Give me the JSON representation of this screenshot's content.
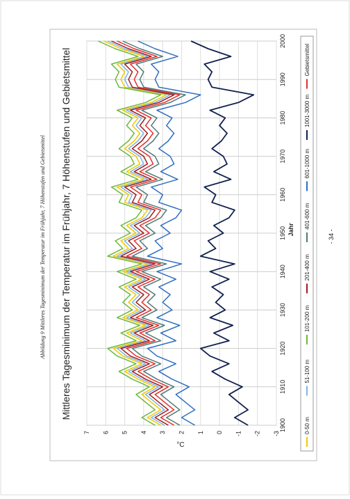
{
  "page": {
    "caption": "Abbildung 9 Mittleres Tagesminimum der Temperatur im Frühjahr, 7 Höhenstufen und Gebietsmittel",
    "page_number": "- 34 -"
  },
  "chart_data": {
    "type": "line",
    "title": "Mittleres Tagesminimum der Temperatur im Frühjahr, 7 Höhenstufen und Gebietsmittel",
    "x_label": "Jahr",
    "y_label": "°C",
    "x": [
      1900,
      1902,
      1904,
      1906,
      1908,
      1910,
      1912,
      1914,
      1916,
      1918,
      1920,
      1922,
      1924,
      1926,
      1928,
      1930,
      1932,
      1934,
      1936,
      1938,
      1940,
      1942,
      1944,
      1946,
      1948,
      1950,
      1952,
      1954,
      1956,
      1958,
      1960,
      1962,
      1964,
      1966,
      1968,
      1970,
      1972,
      1974,
      1976,
      1978,
      1980,
      1982,
      1984,
      1986,
      1988,
      1990,
      1992,
      1994,
      1996,
      1998,
      2000
    ],
    "xlim": [
      1900,
      2000
    ],
    "xticks": [
      1900,
      1910,
      1920,
      1930,
      1940,
      1950,
      1960,
      1970,
      1980,
      1990,
      2000
    ],
    "ylim": [
      -3,
      7
    ],
    "yticks": [
      -3,
      -2,
      -1,
      0,
      1,
      2,
      3,
      4,
      5,
      6,
      7
    ],
    "grid": true,
    "legend_position": "bottom",
    "series": [
      {
        "name": "0-50 m",
        "color": "#f0c800",
        "values": [
          3.1,
          3.8,
          3.1,
          3.6,
          4.1,
          3.4,
          4.3,
          5.0,
          4.1,
          5.1,
          5.6,
          4.1,
          4.9,
          3.9,
          5.1,
          4.3,
          4.8,
          4.4,
          5.0,
          4.1,
          5.1,
          3.8,
          5.6,
          4.8,
          5.2,
          4.4,
          4.9,
          4.1,
          3.8,
          5.0,
          4.8,
          5.4,
          4.0,
          4.9,
          4.2,
          4.4,
          5.0,
          4.5,
          4.2,
          4.6,
          4.3,
          5.1,
          3.6,
          2.8,
          5.0,
          5.2,
          5.0,
          5.4,
          4.0,
          5.2,
          6.1
        ]
      },
      {
        "name": "51-100 m",
        "color": "#80b4e4",
        "values": [
          2.9,
          3.6,
          2.9,
          3.4,
          3.9,
          3.2,
          4.1,
          4.8,
          3.9,
          4.9,
          5.4,
          3.9,
          4.7,
          3.7,
          4.9,
          4.1,
          4.6,
          4.2,
          4.8,
          3.9,
          4.9,
          3.6,
          5.4,
          4.6,
          5.0,
          4.2,
          4.7,
          3.9,
          3.6,
          4.8,
          4.6,
          5.2,
          3.8,
          4.7,
          4.0,
          4.2,
          4.8,
          4.3,
          4.0,
          4.4,
          4.1,
          4.9,
          3.4,
          2.6,
          4.8,
          5.0,
          4.8,
          5.2,
          3.8,
          5.0,
          5.9
        ]
      },
      {
        "name": "101-200 m",
        "color": "#6cb83a",
        "values": [
          3.4,
          4.1,
          3.4,
          3.9,
          4.4,
          3.7,
          4.6,
          5.3,
          4.4,
          5.4,
          5.9,
          4.4,
          5.2,
          4.2,
          5.4,
          4.6,
          5.1,
          4.7,
          5.3,
          4.4,
          5.4,
          4.1,
          5.9,
          5.1,
          5.5,
          4.7,
          5.2,
          4.4,
          4.1,
          5.3,
          5.1,
          5.7,
          4.3,
          5.2,
          4.5,
          4.7,
          5.3,
          4.8,
          4.5,
          4.9,
          4.6,
          5.4,
          3.9,
          3.1,
          5.3,
          5.5,
          5.3,
          5.7,
          4.3,
          5.5,
          6.4
        ]
      },
      {
        "name": "201-400 m",
        "color": "#9c1c1c",
        "values": [
          2.7,
          3.4,
          2.7,
          3.2,
          3.7,
          3.0,
          3.9,
          4.6,
          3.7,
          4.7,
          5.2,
          3.7,
          4.5,
          3.5,
          4.7,
          3.9,
          4.4,
          4.0,
          4.6,
          3.7,
          4.7,
          3.4,
          5.2,
          4.4,
          4.8,
          4.0,
          4.5,
          3.7,
          3.4,
          4.6,
          4.4,
          5.0,
          3.6,
          4.5,
          3.8,
          4.0,
          4.6,
          4.1,
          3.8,
          4.2,
          3.9,
          4.7,
          3.2,
          2.4,
          4.6,
          4.8,
          4.6,
          5.0,
          3.6,
          4.8,
          5.7
        ]
      },
      {
        "name": "401-600 m",
        "color": "#4e7a78",
        "values": [
          2.1,
          2.8,
          2.1,
          2.6,
          3.1,
          2.4,
          3.3,
          4.0,
          3.1,
          4.1,
          4.6,
          3.1,
          3.9,
          2.9,
          4.1,
          3.3,
          3.8,
          3.4,
          4.0,
          3.1,
          4.1,
          2.8,
          4.6,
          3.8,
          4.2,
          3.4,
          3.9,
          3.1,
          2.8,
          4.0,
          3.8,
          4.4,
          3.0,
          3.9,
          3.2,
          3.4,
          4.0,
          3.5,
          3.2,
          3.6,
          3.3,
          4.1,
          2.6,
          1.8,
          4.0,
          4.2,
          4.0,
          4.4,
          3.0,
          4.2,
          5.1
        ]
      },
      {
        "name": "601-1000 m",
        "color": "#2f6fc0",
        "values": [
          1.3,
          2.0,
          1.3,
          1.8,
          2.3,
          1.6,
          2.5,
          3.2,
          2.3,
          3.3,
          3.8,
          2.3,
          3.1,
          2.1,
          3.3,
          2.5,
          3.0,
          2.6,
          3.2,
          2.3,
          3.3,
          2.0,
          3.8,
          3.0,
          3.4,
          2.6,
          3.1,
          2.3,
          2.0,
          3.2,
          3.0,
          3.6,
          2.2,
          3.1,
          2.4,
          2.6,
          3.2,
          2.7,
          2.4,
          2.8,
          2.5,
          3.3,
          1.8,
          1.0,
          3.2,
          3.4,
          3.2,
          3.6,
          2.2,
          3.4,
          4.3
        ]
      },
      {
        "name": "1001-3000 m",
        "color": "#10204e",
        "values": [
          -1.5,
          -0.8,
          -1.5,
          -1.0,
          -0.5,
          -1.2,
          -0.3,
          0.4,
          -0.5,
          0.5,
          1.0,
          -0.5,
          0.3,
          -0.7,
          0.5,
          -0.3,
          0.2,
          -0.2,
          0.4,
          -0.5,
          0.5,
          -0.8,
          1.0,
          0.2,
          0.6,
          -0.2,
          0.3,
          -0.5,
          -0.8,
          0.4,
          0.2,
          0.8,
          -0.6,
          0.3,
          -0.4,
          -0.2,
          0.4,
          -0.1,
          -0.4,
          0.0,
          -0.3,
          0.5,
          -1.0,
          -1.8,
          0.4,
          0.6,
          0.4,
          0.8,
          -0.6,
          0.6,
          1.5
        ]
      },
      {
        "name": "Gebietsmittel",
        "color": "#e03030",
        "values": [
          2.4,
          3.1,
          2.4,
          2.9,
          3.4,
          2.7,
          3.6,
          4.3,
          3.4,
          4.4,
          4.9,
          3.4,
          4.2,
          3.2,
          4.4,
          3.6,
          4.1,
          3.7,
          4.3,
          3.4,
          4.4,
          3.1,
          4.9,
          4.1,
          4.5,
          3.7,
          4.2,
          3.4,
          3.1,
          4.3,
          4.1,
          4.7,
          3.3,
          4.2,
          3.5,
          3.7,
          4.3,
          3.8,
          3.5,
          3.9,
          3.6,
          4.4,
          2.9,
          2.1,
          4.3,
          4.5,
          4.3,
          4.7,
          3.3,
          4.5,
          5.4
        ]
      }
    ]
  }
}
